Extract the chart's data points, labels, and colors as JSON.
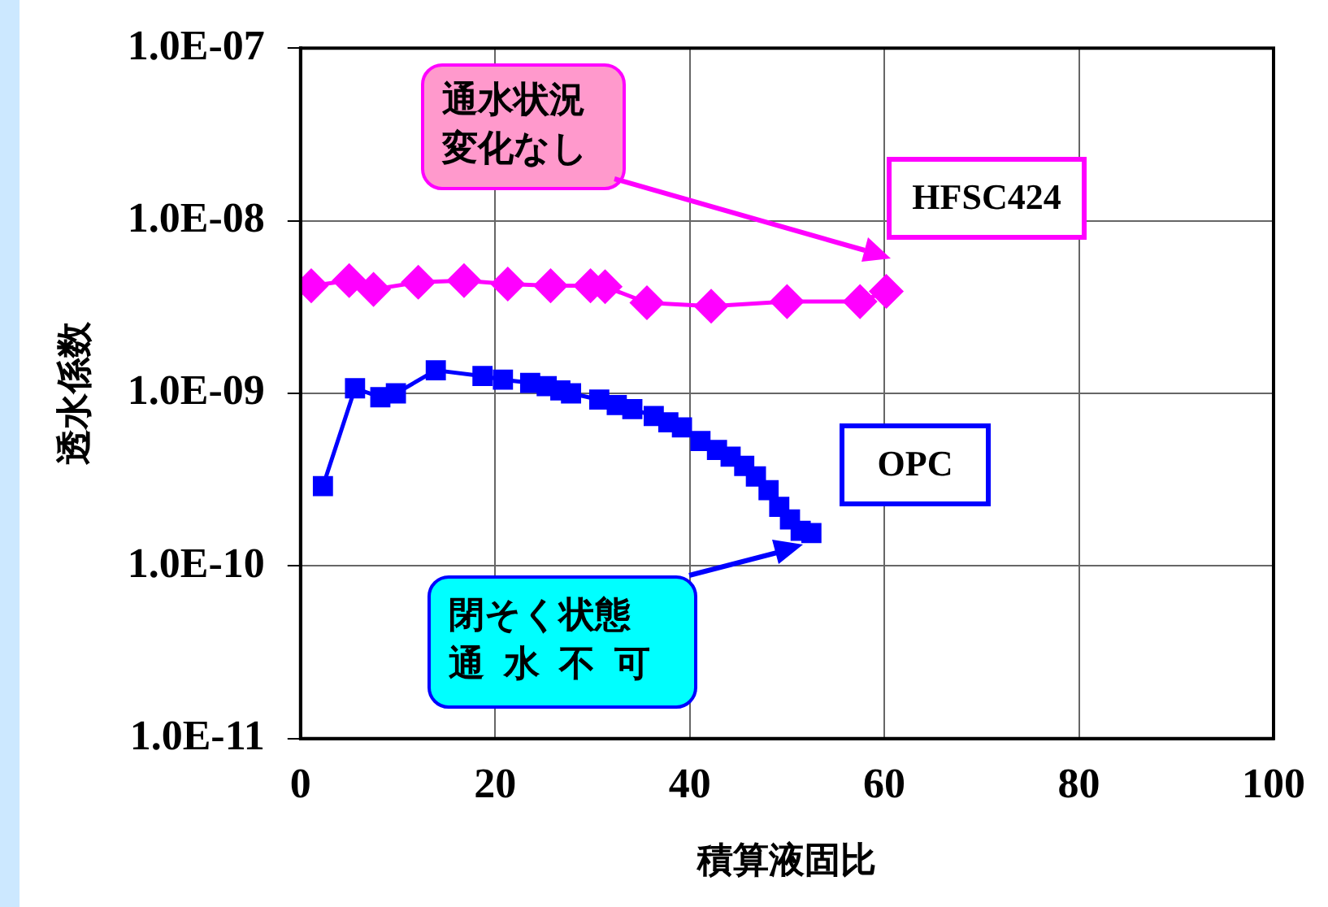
{
  "chart_data": {
    "type": "line",
    "xlabel": "積算液固比",
    "ylabel": "透水係数",
    "log": "y",
    "grid": true,
    "legend": false,
    "xlim": [
      0,
      100
    ],
    "xticks": [
      0,
      20,
      40,
      60,
      80,
      100
    ],
    "ylim": [
      1e-11,
      1e-07
    ],
    "yticks": [
      {
        "value": 1e-11,
        "label": "1.0E-11"
      },
      {
        "value": 1e-10,
        "label": "1.0E-10"
      },
      {
        "value": 1e-09,
        "label": "1.0E-09"
      },
      {
        "value": 1e-08,
        "label": "1.0E-08"
      },
      {
        "value": 1e-07,
        "label": "1.0E-07"
      }
    ],
    "series": [
      {
        "name": "HFSC424",
        "color": "#ff00ff",
        "marker": "diamond",
        "x": [
          1.1,
          5.0,
          7.5,
          12.1,
          16.8,
          21.3,
          25.7,
          29.8,
          31.3,
          35.6,
          42.2,
          50.0,
          57.5,
          60.2
        ],
        "values": [
          4.2e-09,
          4.5e-09,
          4e-09,
          4.4e-09,
          4.5e-09,
          4.3e-09,
          4.2e-09,
          4.2e-09,
          4.15e-09,
          3.35e-09,
          3.2e-09,
          3.4e-09,
          3.4e-09,
          3.9e-09
        ]
      },
      {
        "name": "OPC",
        "color": "#0000ff",
        "marker": "square",
        "x": [
          2.3,
          5.6,
          8.2,
          9.8,
          13.9,
          18.7,
          20.8,
          23.6,
          25.3,
          26.7,
          27.8,
          30.7,
          32.5,
          34.1,
          36.3,
          37.8,
          39.2,
          41.1,
          42.8,
          44.2,
          45.6,
          46.8,
          48.1,
          49.2,
          50.3,
          51.4,
          52.5
        ],
        "values": [
          2.9e-10,
          1.07e-09,
          9.5e-10,
          1e-09,
          1.36e-09,
          1.26e-09,
          1.2e-09,
          1.15e-09,
          1.1e-09,
          1.04e-09,
          1e-09,
          9.2e-10,
          8.55e-10,
          8.1e-10,
          7.4e-10,
          6.8e-10,
          6.35e-10,
          5.3e-10,
          4.7e-10,
          4.3e-10,
          3.8e-10,
          3.3e-10,
          2.75e-10,
          2.2e-10,
          1.86e-10,
          1.6e-10,
          1.55e-10
        ]
      }
    ],
    "annotations": [
      "通水状況変化なし",
      "閉そく状態通水不可"
    ]
  }
}
